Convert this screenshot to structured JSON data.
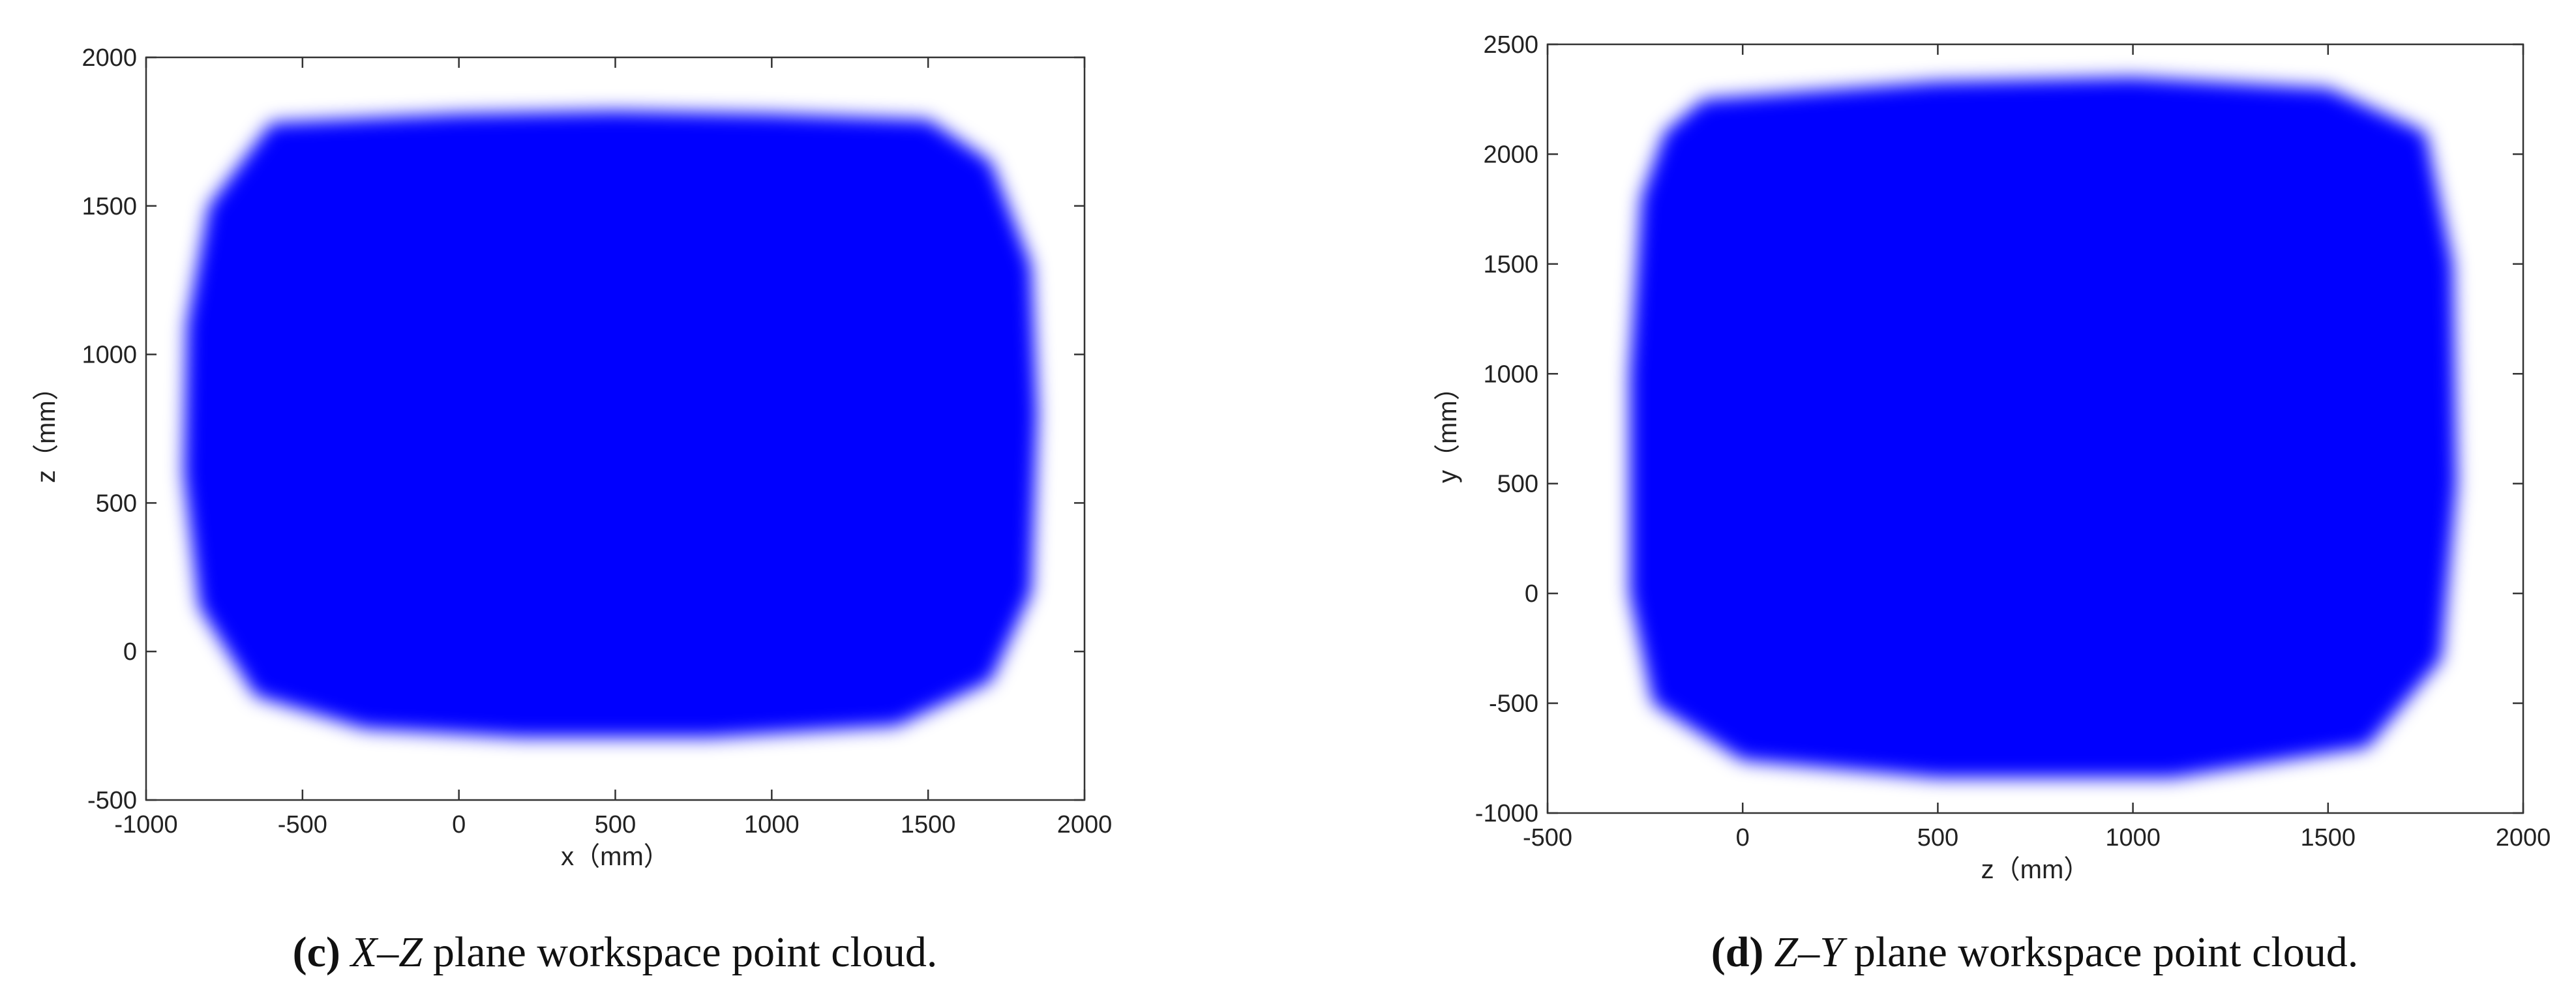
{
  "chart_data": [
    {
      "type": "region",
      "color": "#0000ff",
      "xlabel": "x（mm）",
      "ylabel": "z（mm）",
      "caption_label": "(c)",
      "caption_plane": "X–Z",
      "caption_text": "plane workspace point cloud.",
      "xlim": [
        -1000,
        2000
      ],
      "ylim": [
        -500,
        2000
      ],
      "xticks": [
        -1000,
        -500,
        0,
        500,
        1000,
        1500,
        2000
      ],
      "yticks": [
        -500,
        0,
        500,
        1000,
        1500,
        2000
      ],
      "x": [
        -600,
        0,
        500,
        1000,
        1500,
        1700,
        1830,
        1850,
        1830,
        1700,
        1400,
        800,
        200,
        -300,
        -650,
        -830,
        -880,
        -870,
        -800
      ],
      "y": [
        1780,
        1810,
        1820,
        1810,
        1790,
        1650,
        1300,
        800,
        200,
        -100,
        -250,
        -290,
        -290,
        -260,
        -150,
        150,
        600,
        1100,
        1500
      ]
    },
    {
      "type": "region",
      "color": "#0000ff",
      "xlabel": "z（mm）",
      "ylabel": "y（mm）",
      "caption_label": "(d)",
      "caption_plane": "Z–Y",
      "caption_text": "plane workspace point cloud.",
      "xlim": [
        -500,
        2000
      ],
      "ylim": [
        -1000,
        2500
      ],
      "xticks": [
        -500,
        0,
        500,
        1000,
        1500,
        2000
      ],
      "yticks": [
        -1000,
        -500,
        0,
        500,
        1000,
        1500,
        2000,
        2500
      ],
      "x": [
        -100,
        500,
        1000,
        1500,
        1750,
        1820,
        1830,
        1790,
        1600,
        1100,
        500,
        0,
        -230,
        -290,
        -290,
        -260,
        -200
      ],
      "y": [
        2250,
        2330,
        2350,
        2300,
        2100,
        1500,
        500,
        -300,
        -700,
        -840,
        -840,
        -760,
        -500,
        0,
        1000,
        1800,
        2100
      ]
    }
  ]
}
